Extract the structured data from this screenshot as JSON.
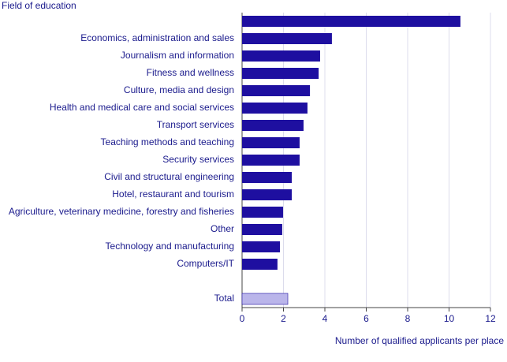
{
  "chart_data": {
    "type": "hbar",
    "y_axis_title": "Field of education",
    "x_axis_title": "Number of qualified applicants per place",
    "categories": [
      null,
      "Economics, administration and sales",
      "Journalism and information",
      "Fitness and wellness",
      "Culture, media and design",
      "Health and medical care and social services",
      "Transport services",
      "Teaching methods and teaching",
      "Security services",
      "Civil and structural engineering",
      "Hotel, restaurant and tourism",
      "Agriculture, veterinary medicine, forestry and fisheries",
      "Other",
      "Technology and manufacturing",
      "Computers/IT",
      null,
      "Total"
    ],
    "values": [
      10.55,
      4.34,
      3.77,
      3.7,
      3.28,
      3.16,
      2.97,
      2.78,
      2.78,
      2.4,
      2.4,
      1.98,
      1.94,
      1.83,
      1.71,
      null,
      2.21
    ],
    "colors": [
      "#1e0fa0",
      "#1e0fa0",
      "#1e0fa0",
      "#1e0fa0",
      "#1e0fa0",
      "#1e0fa0",
      "#1e0fa0",
      "#1e0fa0",
      "#1e0fa0",
      "#1e0fa0",
      "#1e0fa0",
      "#1e0fa0",
      "#1e0fa0",
      "#1e0fa0",
      "#1e0fa0",
      null,
      "#bab5ea"
    ],
    "xlim": [
      0,
      12
    ],
    "xticks": [
      0,
      2,
      4,
      6,
      8,
      10,
      12
    ],
    "grid": true
  }
}
